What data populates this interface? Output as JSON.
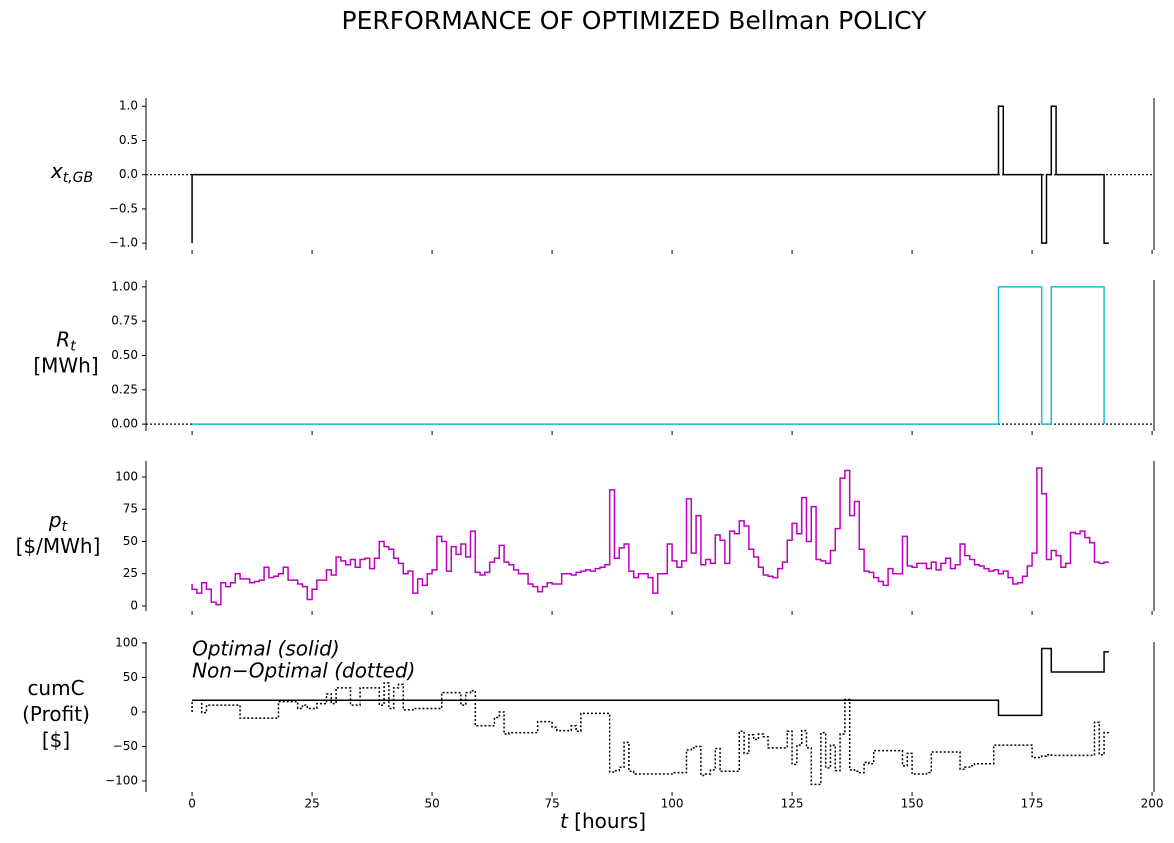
{
  "chart_data": [
    {
      "type": "step",
      "title": "PERFORMANCE OF OPTIMIZED Bellman POLICY",
      "ylabel": [
        "x"
      ],
      "ylabel_sub": "t,GB",
      "step": "pre",
      "xlim": [
        -9.6,
        200.4
      ],
      "xticks": [
        0,
        25,
        50,
        75,
        100,
        125,
        150,
        175,
        200
      ],
      "ylim": [
        -1.1,
        1.12
      ],
      "yticks": [
        {
          "value": -1,
          "label": "−1.0"
        },
        {
          "value": -0.5,
          "label": "−0.5"
        },
        {
          "value": 0,
          "label": "0.0"
        },
        {
          "value": 0.5,
          "label": "0.5"
        },
        {
          "value": 1,
          "label": "1.0"
        }
      ],
      "zero_line": true,
      "series": [
        {
          "color": "#000000",
          "dash": "solid",
          "x": [
            0,
            168,
            169,
            177,
            178,
            179,
            180,
            190,
            191
          ],
          "values": [
            -1,
            0,
            1,
            0,
            -1,
            0,
            1,
            0,
            -1
          ]
        }
      ]
    },
    {
      "type": "step",
      "ylabel": [
        "R",
        "[MWh]"
      ],
      "ylabel_sub": "t",
      "step": "pre",
      "xlim": [
        -9.6,
        200.4
      ],
      "xticks": [
        0,
        25,
        50,
        75,
        100,
        125,
        150,
        175,
        200
      ],
      "ylim": [
        -0.05,
        1.05
      ],
      "yticks": [
        {
          "value": 0,
          "label": "0.00"
        },
        {
          "value": 0.25,
          "label": "0.25"
        },
        {
          "value": 0.5,
          "label": "0.50"
        },
        {
          "value": 0.75,
          "label": "0.75"
        },
        {
          "value": 1,
          "label": "1.00"
        }
      ],
      "zero_line": true,
      "series": [
        {
          "color": "#17becf",
          "dash": "solid",
          "x": [
            0,
            168,
            177,
            179,
            190,
            190
          ],
          "values": [
            0,
            0,
            1,
            0,
            1,
            0
          ]
        }
      ]
    },
    {
      "type": "step",
      "ylabel": [
        "p",
        "[$/MWh]"
      ],
      "ylabel_sub": "t",
      "step": "pre",
      "xlim": [
        -9.6,
        200.4
      ],
      "xticks": [
        0,
        25,
        50,
        75,
        100,
        125,
        150,
        175,
        200
      ],
      "ylim": [
        -3.9,
        112.4
      ],
      "yticks": [
        0,
        25,
        50,
        75,
        100
      ],
      "zero_line": false,
      "series": [
        {
          "color": "#bf00bf",
          "dash": "solid",
          "x": [
            0,
            1,
            2,
            3,
            4,
            5,
            6,
            7,
            8,
            9,
            10,
            11,
            12,
            13,
            14,
            15,
            16,
            17,
            18,
            19,
            20,
            21,
            22,
            23,
            24,
            25,
            26,
            27,
            28,
            29,
            30,
            31,
            32,
            33,
            34,
            35,
            36,
            37,
            38,
            39,
            40,
            41,
            42,
            43,
            44,
            45,
            46,
            47,
            48,
            49,
            50,
            51,
            52,
            53,
            54,
            55,
            56,
            57,
            58,
            59,
            60,
            61,
            62,
            63,
            64,
            65,
            66,
            67,
            68,
            69,
            70,
            71,
            72,
            73,
            74,
            75,
            76,
            77,
            78,
            79,
            80,
            81,
            82,
            83,
            84,
            85,
            86,
            87,
            88,
            89,
            90,
            91,
            92,
            93,
            94,
            95,
            96,
            97,
            98,
            99,
            100,
            101,
            102,
            103,
            104,
            105,
            106,
            107,
            108,
            109,
            110,
            111,
            112,
            113,
            114,
            115,
            116,
            117,
            118,
            119,
            120,
            121,
            122,
            123,
            124,
            125,
            126,
            127,
            128,
            129,
            130,
            131,
            132,
            133,
            134,
            135,
            136,
            137,
            138,
            139,
            140,
            141,
            142,
            143,
            144,
            145,
            146,
            147,
            148,
            149,
            150,
            151,
            152,
            153,
            154,
            155,
            156,
            157,
            158,
            159,
            160,
            161,
            162,
            163,
            164,
            165,
            166,
            167,
            168,
            169,
            170,
            171,
            172,
            173,
            174,
            175,
            176,
            177,
            178,
            179,
            180,
            181,
            182,
            183,
            184,
            185,
            186,
            187,
            188,
            189,
            190,
            191
          ],
          "values": [
            17,
            13,
            10,
            18,
            13,
            3,
            1,
            18,
            15,
            18,
            25,
            21,
            21,
            18,
            19,
            20,
            30,
            22,
            23,
            25,
            30,
            20,
            20,
            17,
            15,
            5,
            13,
            20,
            20,
            28,
            24,
            38,
            35,
            32,
            36,
            30,
            36,
            37,
            29,
            37,
            50,
            46,
            44,
            37,
            33,
            25,
            27,
            10,
            21,
            16,
            25,
            28,
            54,
            50,
            27,
            46,
            40,
            48,
            38,
            58,
            26,
            24,
            26,
            34,
            37,
            47,
            34,
            32,
            28,
            25,
            25,
            17,
            15,
            11,
            15,
            18,
            17,
            17,
            25,
            25,
            24,
            26,
            27,
            28,
            27,
            29,
            30,
            32,
            90,
            37,
            45,
            48,
            27,
            22,
            25,
            25,
            22,
            10,
            25,
            25,
            48,
            35,
            30,
            35,
            83,
            41,
            70,
            32,
            36,
            33,
            55,
            51,
            33,
            58,
            56,
            66,
            62,
            44,
            38,
            30,
            24,
            23,
            22,
            29,
            34,
            51,
            64,
            56,
            84,
            50,
            77,
            36,
            35,
            33,
            43,
            60,
            99,
            105,
            70,
            81,
            44,
            27,
            26,
            22,
            19,
            16,
            29,
            25,
            25,
            54,
            31,
            30,
            33,
            33,
            29,
            34,
            28,
            33,
            37,
            29,
            32,
            48,
            39,
            36,
            32,
            31,
            29,
            27,
            28,
            25,
            27,
            22,
            17,
            18,
            23,
            31,
            41,
            107,
            87,
            36,
            43,
            39,
            30,
            33,
            57,
            56,
            58,
            53,
            49,
            34,
            33,
            34
          ]
        }
      ]
    },
    {
      "type": "step",
      "ylabel": [
        "cumC",
        "(Profit)",
        "[$]"
      ],
      "step": "pre",
      "xlim": [
        -9.6,
        200.4
      ],
      "xticks": [
        0,
        25,
        50,
        75,
        100,
        125,
        150,
        175,
        200
      ],
      "xlabel_var": "t",
      "xlabel": "[hours]",
      "ylim": [
        -116,
        101.4
      ],
      "yticks": [
        {
          "value": -100,
          "label": "−100"
        },
        {
          "value": -50,
          "label": "−50"
        },
        0,
        50,
        100
      ],
      "zero_line": false,
      "series": [
        {
          "name": "Optimal (solid)",
          "color": "#000000",
          "dash": "solid",
          "x": [
            0,
            168,
            177,
            179,
            190,
            191
          ],
          "values": [
            17,
            17,
            -5,
            92,
            58,
            87
          ]
        },
        {
          "name": "Non−Optimal (dotted)",
          "color": "#000000",
          "dash": "dotted",
          "x": [
            0,
            1,
            2,
            3,
            4,
            5,
            6,
            7,
            8,
            9,
            10,
            11,
            12,
            13,
            14,
            15,
            16,
            17,
            18,
            19,
            20,
            21,
            22,
            23,
            24,
            25,
            26,
            27,
            28,
            29,
            30,
            31,
            32,
            33,
            34,
            35,
            36,
            37,
            38,
            39,
            40,
            41,
            42,
            43,
            44,
            45,
            46,
            47,
            48,
            49,
            50,
            51,
            52,
            53,
            54,
            55,
            56,
            57,
            58,
            59,
            60,
            61,
            62,
            63,
            64,
            65,
            66,
            67,
            68,
            69,
            70,
            71,
            72,
            73,
            74,
            75,
            76,
            77,
            78,
            79,
            80,
            81,
            82,
            83,
            84,
            85,
            86,
            87,
            88,
            89,
            90,
            91,
            92,
            93,
            94,
            95,
            96,
            97,
            98,
            99,
            100,
            101,
            102,
            103,
            104,
            105,
            106,
            107,
            108,
            109,
            110,
            111,
            112,
            113,
            114,
            115,
            116,
            117,
            118,
            119,
            120,
            121,
            122,
            123,
            124,
            125,
            126,
            127,
            128,
            129,
            130,
            131,
            132,
            133,
            134,
            135,
            136,
            137,
            138,
            139,
            140,
            141,
            142,
            143,
            144,
            145,
            146,
            147,
            148,
            149,
            150,
            151,
            152,
            153,
            154,
            155,
            156,
            157,
            158,
            159,
            160,
            161,
            162,
            163,
            164,
            165,
            166,
            167,
            168,
            169,
            170,
            171,
            172,
            173,
            174,
            175,
            176,
            177,
            178,
            179,
            180,
            181,
            182,
            183,
            184,
            185,
            186,
            187,
            188,
            189,
            190,
            191
          ],
          "values": [
            0,
            17,
            17,
            -1,
            10,
            10,
            10,
            10,
            10,
            10,
            10,
            -9,
            -9,
            -9,
            -9,
            -9,
            -9,
            -9,
            -9,
            15,
            15,
            15,
            15,
            5,
            10,
            5,
            5,
            12,
            12,
            26,
            12,
            35,
            35,
            35,
            10,
            10,
            35,
            35,
            35,
            35,
            10,
            42,
            5,
            35,
            40,
            3,
            3,
            5,
            5,
            5,
            5,
            5,
            5,
            28,
            28,
            28,
            28,
            10,
            28,
            31,
            -20,
            -20,
            -20,
            -20,
            -8,
            0,
            -32,
            -30,
            -30,
            -30,
            -30,
            -30,
            -30,
            -14,
            -14,
            -14,
            -22,
            -27,
            -27,
            -27,
            -20,
            -28,
            -2,
            -2,
            -2,
            -2,
            -2,
            -2,
            -87,
            -85,
            -80,
            -44,
            -86,
            -90,
            -90,
            -90,
            -90,
            -90,
            -90,
            -90,
            -90,
            -88,
            -88,
            -88,
            -55,
            -52,
            -50,
            -92,
            -90,
            -84,
            -53,
            -86,
            -86,
            -86,
            -86,
            -28,
            -60,
            -33,
            -40,
            -32,
            -36,
            -52,
            -52,
            -52,
            -52,
            -28,
            -76,
            -48,
            -27,
            -52,
            -105,
            -105,
            -30,
            -81,
            -48,
            -85,
            -32,
            18,
            -84,
            -86,
            -88,
            -73,
            -75,
            -56,
            -56,
            -56,
            -56,
            -56,
            -56,
            -78,
            -60,
            -90,
            -90,
            -90,
            -88,
            -58,
            -58,
            -58,
            -58,
            -58,
            -58,
            -83,
            -80,
            -78,
            -75,
            -75,
            -75,
            -75,
            -48,
            -48,
            -48,
            -48,
            -48,
            -48,
            -48,
            -48,
            -66,
            -66,
            -64,
            -62,
            -63,
            -63,
            -63,
            -63,
            -63,
            -63,
            -63,
            -63,
            -63,
            -15,
            -62,
            -30
          ]
        }
      ]
    }
  ]
}
